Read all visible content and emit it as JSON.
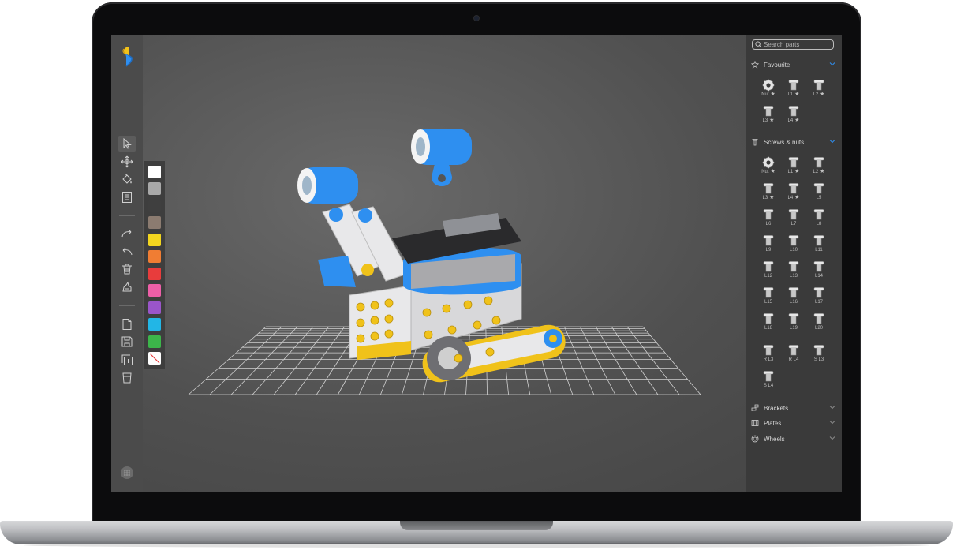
{
  "app": {
    "search": {
      "placeholder": "Search parts"
    },
    "toolbar": {
      "tools": [
        "select-tool",
        "move-tool",
        "paint-tool",
        "properties-tool",
        "redo-tool",
        "undo-tool",
        "delete-tool",
        "clone-tool",
        "new-file-tool",
        "save-tool",
        "add-tool",
        "export-tool"
      ]
    },
    "palette": {
      "colors": [
        "#ffffff",
        "#a8a8a8",
        "#3f3f3f",
        "#8b7b70",
        "#f2d51f",
        "#f07d33",
        "#e83c3c",
        "#ee5fa8",
        "#9a55c9",
        "#22b6e6",
        "#3cb54a"
      ],
      "none_swatch": "no-color"
    },
    "sections": {
      "favourite": {
        "label": "Favourite"
      },
      "screws": {
        "label": "Screws & nuts"
      },
      "brackets": {
        "label": "Brackets"
      },
      "plates": {
        "label": "Plates"
      },
      "wheels": {
        "label": "Wheels"
      }
    },
    "favourite_parts": [
      {
        "label": "Nut",
        "starred": true,
        "icon": "nut-icon"
      },
      {
        "label": "L1",
        "starred": true,
        "icon": "screw-icon"
      },
      {
        "label": "L2",
        "starred": true,
        "icon": "screw-icon"
      },
      {
        "label": "L3",
        "starred": true,
        "icon": "screw-icon"
      },
      {
        "label": "L4",
        "starred": true,
        "icon": "screw-icon"
      }
    ],
    "screw_parts": [
      {
        "label": "Nut",
        "starred": true,
        "icon": "nut-icon"
      },
      {
        "label": "L1",
        "starred": true,
        "icon": "screw-icon"
      },
      {
        "label": "L2",
        "starred": true,
        "icon": "screw-icon"
      },
      {
        "label": "L3",
        "starred": true,
        "icon": "screw-icon"
      },
      {
        "label": "L4",
        "starred": true,
        "icon": "screw-icon"
      },
      {
        "label": "L5",
        "starred": false,
        "icon": "screw-icon"
      },
      {
        "label": "L6",
        "starred": false,
        "icon": "screw-icon"
      },
      {
        "label": "L7",
        "starred": false,
        "icon": "screw-icon"
      },
      {
        "label": "L8",
        "starred": false,
        "icon": "screw-icon"
      },
      {
        "label": "L9",
        "starred": false,
        "icon": "screw-icon"
      },
      {
        "label": "L10",
        "starred": false,
        "icon": "screw-icon"
      },
      {
        "label": "L11",
        "starred": false,
        "icon": "screw-icon"
      },
      {
        "label": "L12",
        "starred": false,
        "icon": "screw-icon"
      },
      {
        "label": "L13",
        "starred": false,
        "icon": "screw-icon"
      },
      {
        "label": "L14",
        "starred": false,
        "icon": "screw-icon"
      },
      {
        "label": "L15",
        "starred": false,
        "icon": "screw-icon"
      },
      {
        "label": "L16",
        "starred": false,
        "icon": "screw-icon"
      },
      {
        "label": "L17",
        "starred": false,
        "icon": "screw-icon"
      },
      {
        "label": "L18",
        "starred": false,
        "icon": "screw-icon"
      },
      {
        "label": "L19",
        "starred": false,
        "icon": "screw-icon"
      },
      {
        "label": "L20",
        "starred": false,
        "icon": "screw-icon"
      }
    ],
    "special_parts": [
      {
        "label": "R L3",
        "starred": false,
        "icon": "screw-icon"
      },
      {
        "label": "R L4",
        "starred": false,
        "icon": "screw-icon"
      },
      {
        "label": "S L3",
        "starred": false,
        "icon": "screw-icon"
      },
      {
        "label": "S L4",
        "starred": false,
        "icon": "screw-icon"
      }
    ],
    "accent": "#2f8ff0",
    "robot_colors": {
      "blue": "#2e8ff0",
      "white": "#e8e8ea",
      "yellow": "#f0c21a",
      "gray": "#6e6e72"
    }
  }
}
